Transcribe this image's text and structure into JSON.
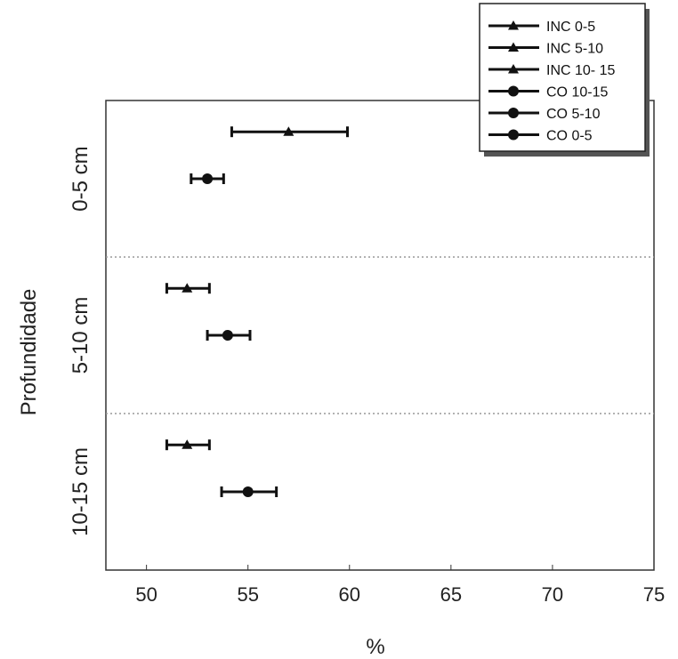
{
  "chart_data": {
    "type": "scatter",
    "orientation": "horizontal",
    "xlabel": "%",
    "ylabel": "Profundidade",
    "xlim": [
      48,
      75
    ],
    "x_ticks": [
      50,
      55,
      60,
      65,
      70,
      75
    ],
    "categories": [
      "0-5 cm",
      "5-10 cm",
      "10-15 cm"
    ],
    "grid": "dotted separators between depth groups",
    "legend": {
      "position": "top-right",
      "entries": [
        {
          "label": "INC 0-5",
          "marker": "triangle"
        },
        {
          "label": "INC 5-10",
          "marker": "triangle"
        },
        {
          "label": "INC 10- 15",
          "marker": "triangle"
        },
        {
          "label": "CO 10-15",
          "marker": "circle"
        },
        {
          "label": "CO 5-10",
          "marker": "circle"
        },
        {
          "label": "CO 0-5",
          "marker": "circle"
        }
      ]
    },
    "series": [
      {
        "name": "INC 0-5",
        "category": "0-5 cm",
        "group": "INC",
        "marker": "triangle",
        "value": 57.0,
        "err_low": 54.2,
        "err_high": 59.9
      },
      {
        "name": "CO 0-5",
        "category": "0-5 cm",
        "group": "CO",
        "marker": "circle",
        "value": 53.0,
        "err_low": 52.2,
        "err_high": 53.8
      },
      {
        "name": "INC 5-10",
        "category": "5-10 cm",
        "group": "INC",
        "marker": "triangle",
        "value": 52.0,
        "err_low": 51.0,
        "err_high": 53.1
      },
      {
        "name": "CO 5-10",
        "category": "5-10 cm",
        "group": "CO",
        "marker": "circle",
        "value": 54.0,
        "err_low": 53.0,
        "err_high": 55.1
      },
      {
        "name": "INC 10- 15",
        "category": "10-15 cm",
        "group": "INC",
        "marker": "triangle",
        "value": 52.0,
        "err_low": 51.0,
        "err_high": 53.1
      },
      {
        "name": "CO 10-15",
        "category": "10-15 cm",
        "group": "CO",
        "marker": "circle",
        "value": 55.0,
        "err_low": 53.7,
        "err_high": 56.4
      }
    ],
    "colors": {
      "marker": "#111111",
      "axis": "#333333",
      "separator": "#999999"
    }
  }
}
